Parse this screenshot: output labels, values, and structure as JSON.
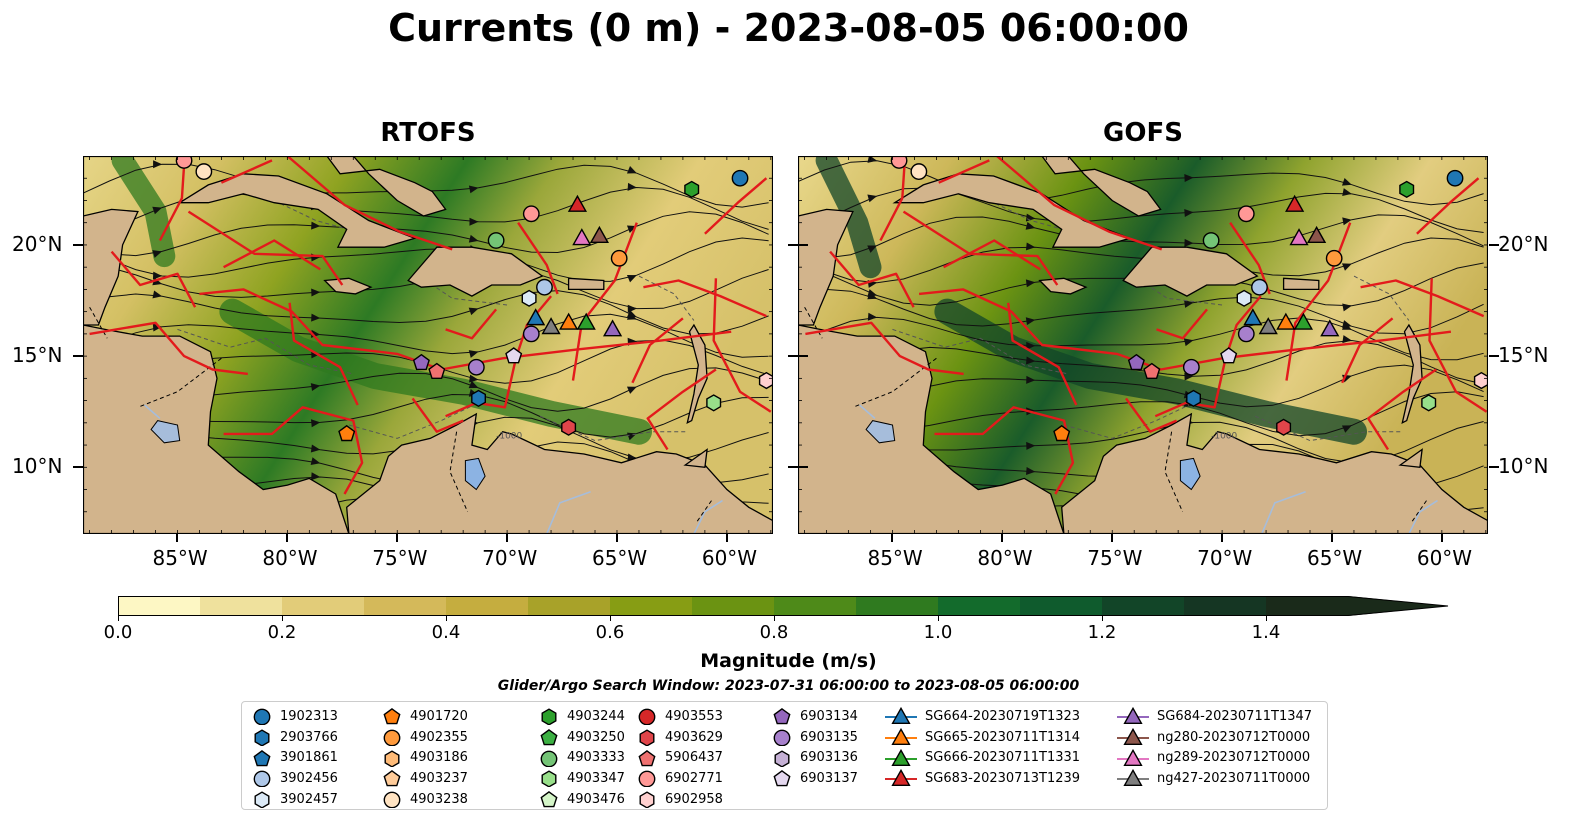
{
  "title": "Currents (0 m) - 2023-08-05 06:00:00",
  "panels": [
    {
      "title": "RTOFS",
      "variant": 0
    },
    {
      "title": "GOFS",
      "variant": 1
    }
  ],
  "map": {
    "lon_range": [
      -89.3,
      -57.9
    ],
    "lat_range": [
      7.0,
      24.0
    ],
    "lon_ticks": [
      -85,
      -80,
      -75,
      -70,
      -65,
      -60
    ],
    "lon_tick_labels": [
      "85°W",
      "80°W",
      "75°W",
      "70°W",
      "65°W",
      "60°W"
    ],
    "lat_ticks": [
      10,
      15,
      20
    ],
    "lat_tick_labels": [
      "10°N",
      "15°N",
      "20°N"
    ],
    "land_color": "#d2b48c",
    "contour_label": "-1000"
  },
  "colorbar": {
    "label": "Magnitude (m/s)",
    "range": [
      0.0,
      1.5
    ],
    "ticks": [
      0.0,
      0.2,
      0.4,
      0.6,
      0.8,
      1.0,
      1.2,
      1.4
    ],
    "tick_labels": [
      "0.0",
      "0.2",
      "0.4",
      "0.6",
      "0.8",
      "1.0",
      "1.2",
      "1.4"
    ],
    "colors": [
      "#fdf7c4",
      "#efe19d",
      "#e2cc79",
      "#d4b95a",
      "#c5ad3f",
      "#a8a229",
      "#879d14",
      "#6b9312",
      "#4e8a19",
      "#2f7a1f",
      "#136b2c",
      "#0f5b2d",
      "#124528",
      "#153623",
      "#1a2a1a"
    ],
    "extend": "max"
  },
  "window_label": "Glider/Argo Search Window: 2023-07-31 06:00:00 to 2023-08-05 06:00:00",
  "legend": {
    "columns": [
      [
        {
          "label": "1902313",
          "marker": "circle",
          "color": "#1f77b4"
        },
        {
          "label": "2903766",
          "marker": "hexagon",
          "color": "#1f77b4"
        },
        {
          "label": "3901861",
          "marker": "pentagon",
          "color": "#1f77b4"
        },
        {
          "label": "3902456",
          "marker": "circle",
          "color": "#aec7e8"
        },
        {
          "label": "3902457",
          "marker": "hexagon",
          "color": "#dbe9f6"
        }
      ],
      [
        {
          "label": "4901720",
          "marker": "pentagon",
          "color": "#ff7f0e"
        },
        {
          "label": "4902355",
          "marker": "circle",
          "color": "#ff9a3c"
        },
        {
          "label": "4903186",
          "marker": "hexagon",
          "color": "#ffbb78"
        },
        {
          "label": "4903237",
          "marker": "pentagon",
          "color": "#ffcc9a"
        },
        {
          "label": "4903238",
          "marker": "circle",
          "color": "#ffe3c2"
        }
      ],
      [
        {
          "label": "4903244",
          "marker": "hexagon",
          "color": "#2ca02c"
        },
        {
          "label": "4903250",
          "marker": "pentagon",
          "color": "#3cb043"
        },
        {
          "label": "4903333",
          "marker": "circle",
          "color": "#74c476"
        },
        {
          "label": "4903347",
          "marker": "hexagon",
          "color": "#98df8a"
        },
        {
          "label": "4903476",
          "marker": "pentagon",
          "color": "#d4f5c8"
        }
      ],
      [
        {
          "label": "4903553",
          "marker": "circle",
          "color": "#d62728"
        },
        {
          "label": "4903629",
          "marker": "hexagon",
          "color": "#e0454a"
        },
        {
          "label": "5906437",
          "marker": "pentagon",
          "color": "#ef7170"
        },
        {
          "label": "6902771",
          "marker": "circle",
          "color": "#ff9896"
        },
        {
          "label": "6902958",
          "marker": "hexagon",
          "color": "#ffd0cf"
        }
      ],
      [
        {
          "label": "6903134",
          "marker": "pentagon",
          "color": "#9467bd"
        },
        {
          "label": "6903135",
          "marker": "circle",
          "color": "#a780cc"
        },
        {
          "label": "6903136",
          "marker": "hexagon",
          "color": "#c5b0d5"
        },
        {
          "label": "6903137",
          "marker": "pentagon",
          "color": "#e4d8ef"
        }
      ],
      [
        {
          "label": "SG664-20230719T1323",
          "marker": "triangle",
          "color": "#1f77b4",
          "line": true
        },
        {
          "label": "SG665-20230711T1314",
          "marker": "triangle",
          "color": "#ff7f0e",
          "line": true
        },
        {
          "label": "SG666-20230711T1331",
          "marker": "triangle",
          "color": "#2ca02c",
          "line": true
        },
        {
          "label": "SG683-20230713T1239",
          "marker": "triangle",
          "color": "#d62728",
          "line": true
        }
      ],
      [
        {
          "label": "SG684-20230711T1347",
          "marker": "triangle",
          "color": "#9467bd",
          "line": true
        },
        {
          "label": "ng280-20230712T0000",
          "marker": "triangle",
          "color": "#8c564b",
          "line": true
        },
        {
          "label": "ng289-20230712T0000",
          "marker": "triangle",
          "color": "#e377c2",
          "line": true
        },
        {
          "label": "ng427-20230711T0000",
          "marker": "triangle",
          "color": "#7f7f7f",
          "line": true
        }
      ]
    ]
  },
  "observations": [
    {
      "lon": -59.4,
      "lat": 23.0,
      "marker": "circle",
      "color": "#1f77b4"
    },
    {
      "lon": -61.6,
      "lat": 22.5,
      "marker": "hexagon",
      "color": "#2ca02c"
    },
    {
      "lon": -83.8,
      "lat": 23.3,
      "marker": "circle",
      "color": "#ffe3c2"
    },
    {
      "lon": -84.7,
      "lat": 23.8,
      "marker": "circle",
      "color": "#ff9896"
    },
    {
      "lon": -68.9,
      "lat": 21.4,
      "marker": "circle",
      "color": "#ff9896"
    },
    {
      "lon": -70.5,
      "lat": 20.2,
      "marker": "circle",
      "color": "#74c476"
    },
    {
      "lon": -64.9,
      "lat": 19.4,
      "marker": "circle",
      "color": "#ff9a3c"
    },
    {
      "lon": -68.3,
      "lat": 18.1,
      "marker": "circle",
      "color": "#aec7e8"
    },
    {
      "lon": -69.0,
      "lat": 17.6,
      "marker": "hexagon",
      "color": "#dbe9f6"
    },
    {
      "lon": -68.9,
      "lat": 16.0,
      "marker": "circle",
      "color": "#a780cc"
    },
    {
      "lon": -69.7,
      "lat": 15.0,
      "marker": "pentagon",
      "color": "#e4d8ef"
    },
    {
      "lon": -71.4,
      "lat": 14.5,
      "marker": "circle",
      "color": "#a780cc"
    },
    {
      "lon": -73.9,
      "lat": 14.7,
      "marker": "pentagon",
      "color": "#9467bd"
    },
    {
      "lon": -73.2,
      "lat": 14.3,
      "marker": "pentagon",
      "color": "#ef7170"
    },
    {
      "lon": -71.3,
      "lat": 13.1,
      "marker": "hexagon",
      "color": "#1f77b4"
    },
    {
      "lon": -77.3,
      "lat": 11.5,
      "marker": "pentagon",
      "color": "#ff7f0e"
    },
    {
      "lon": -67.2,
      "lat": 11.8,
      "marker": "hexagon",
      "color": "#e0454a"
    },
    {
      "lon": -60.6,
      "lat": 12.9,
      "marker": "hexagon",
      "color": "#98df8a"
    },
    {
      "lon": -58.2,
      "lat": 13.9,
      "marker": "hexagon",
      "color": "#ffd0cf"
    },
    {
      "lon": -66.8,
      "lat": 21.8,
      "marker": "triangle",
      "color": "#d62728"
    },
    {
      "lon": -66.6,
      "lat": 20.3,
      "marker": "triangle",
      "color": "#e377c2"
    },
    {
      "lon": -65.8,
      "lat": 20.4,
      "marker": "triangle",
      "color": "#8c564b"
    },
    {
      "lon": -68.7,
      "lat": 16.7,
      "marker": "triangle",
      "color": "#1f77b4"
    },
    {
      "lon": -68.0,
      "lat": 16.3,
      "marker": "triangle",
      "color": "#7f7f7f"
    },
    {
      "lon": -67.2,
      "lat": 16.5,
      "marker": "triangle",
      "color": "#ff7f0e"
    },
    {
      "lon": -66.4,
      "lat": 16.5,
      "marker": "triangle",
      "color": "#2ca02c"
    },
    {
      "lon": -65.2,
      "lat": 16.2,
      "marker": "triangle",
      "color": "#9467bd"
    }
  ]
}
